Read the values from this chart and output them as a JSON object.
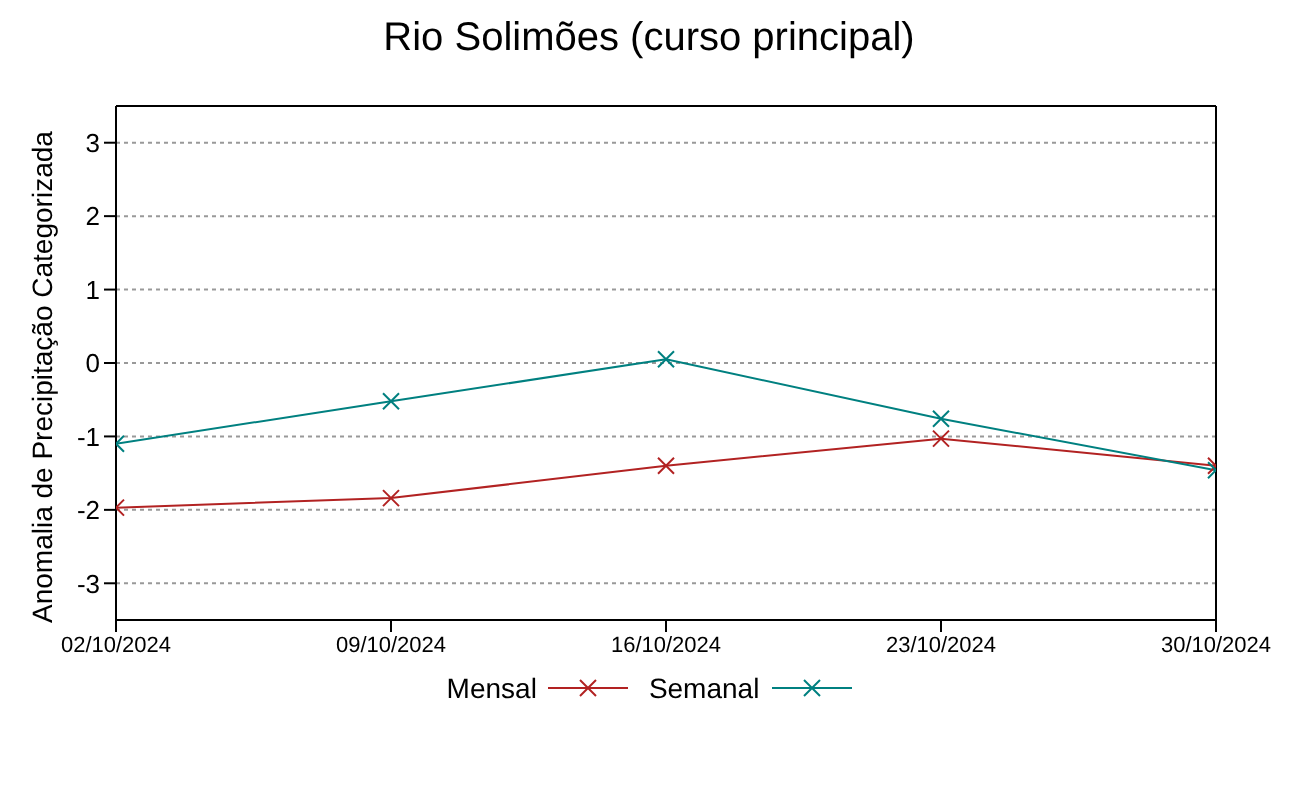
{
  "chart_data": {
    "type": "line",
    "title": "Rio Solimões (curso principal)",
    "ylabel": "Anomalia de Precipitação Categorizada",
    "categories": [
      "02/10/2024",
      "09/10/2024",
      "16/10/2024",
      "23/10/2024",
      "30/10/2024"
    ],
    "series": [
      {
        "name": "Mensal",
        "color": "#b22222",
        "marker": "cross",
        "values": [
          -1.97,
          -1.84,
          -1.4,
          -1.03,
          -1.4
        ]
      },
      {
        "name": "Semanal",
        "color": "#008080",
        "marker": "cross",
        "values": [
          -1.1,
          -0.52,
          0.05,
          -0.76,
          -1.46
        ]
      }
    ],
    "ylim": [
      -3.5,
      3.5
    ],
    "yticks": [
      -3,
      -2,
      -1,
      0,
      1,
      2,
      3
    ],
    "grid": "y",
    "legend": "bottom",
    "line_style": "solid"
  }
}
